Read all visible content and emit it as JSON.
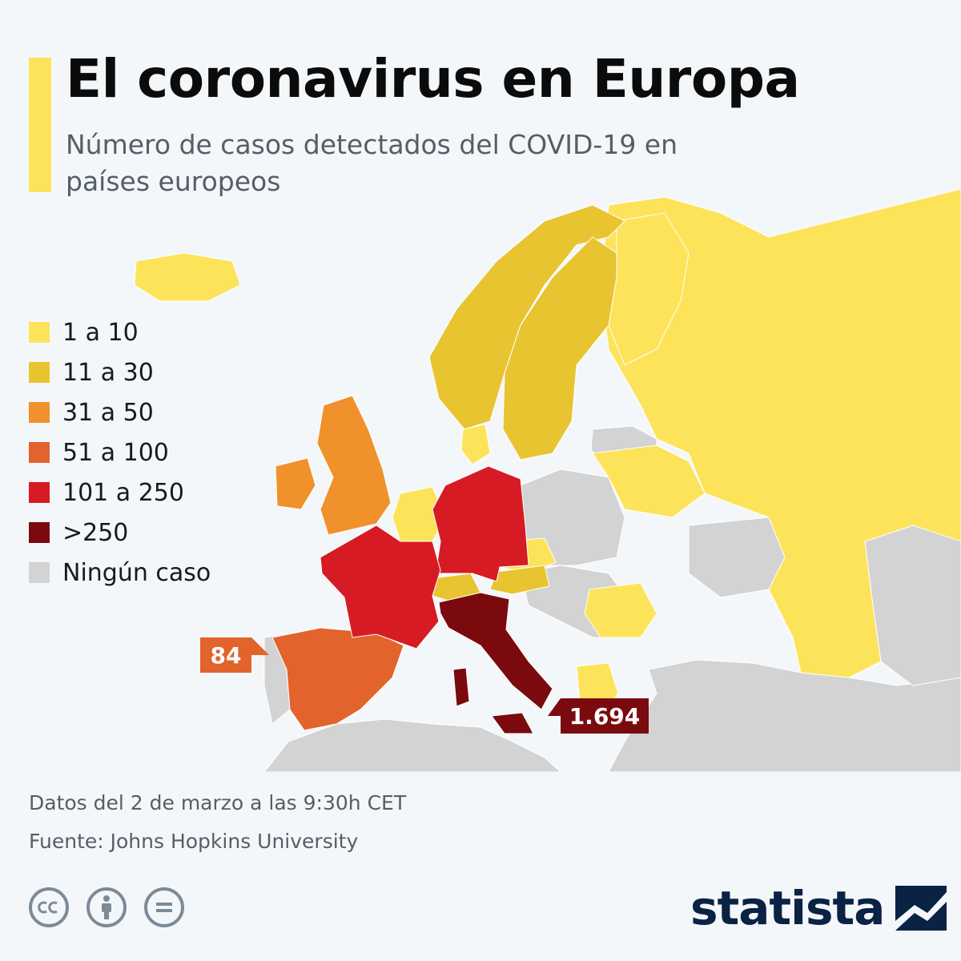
{
  "header": {
    "title": "El coronavirus en Europa",
    "subtitle": "Número de casos detectados del COVID-19 en países europeos"
  },
  "legend": [
    {
      "label": "1 a 10",
      "color": "#fce35a"
    },
    {
      "label": "11 a 30",
      "color": "#e8c431"
    },
    {
      "label": "31 a 50",
      "color": "#f0912b"
    },
    {
      "label": "51 a 100",
      "color": "#e2632b"
    },
    {
      "label": "101 a 250",
      "color": "#d71b24"
    },
    {
      "label": ">250",
      "color": "#7b0a0e"
    },
    {
      "label": "Ningún caso",
      "color": "#d3d3d3"
    }
  ],
  "callouts": {
    "spain": "84",
    "italy": "1.694"
  },
  "footer": {
    "date_note": "Datos del 2 de marzo a las 9:30h CET",
    "source_note": "Fuente: Johns Hopkins University",
    "brand": "statista"
  },
  "icons": [
    "cc-icon",
    "by-person-icon",
    "nd-equals-icon",
    "statista-logo-icon"
  ],
  "colors": {
    "accent": "#fce35a",
    "background": "#f4f7fa",
    "brand": "#0a2244",
    "no_case": "#d3d3d3"
  }
}
